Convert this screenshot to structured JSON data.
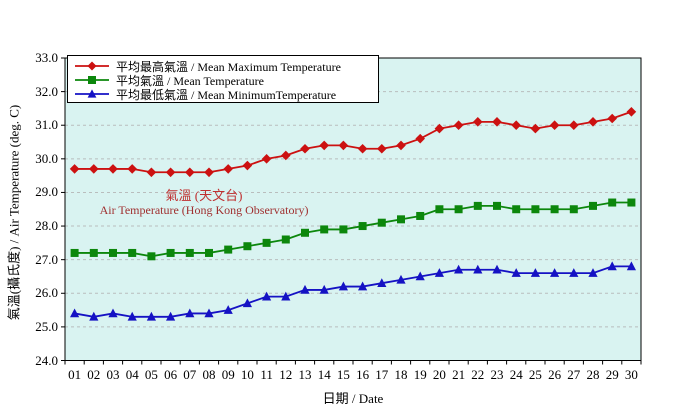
{
  "chart_data": {
    "type": "line",
    "x": [
      "01",
      "02",
      "03",
      "04",
      "05",
      "06",
      "07",
      "08",
      "09",
      "10",
      "11",
      "12",
      "13",
      "14",
      "15",
      "16",
      "17",
      "18",
      "19",
      "20",
      "21",
      "22",
      "23",
      "24",
      "25",
      "26",
      "27",
      "28",
      "29",
      "30"
    ],
    "xlabel": "日期 / Date",
    "ylabel": "氣溫(攝氏度) / Air Temperature (deg. C)",
    "ylim": [
      24.0,
      33.0
    ],
    "yticks": [
      "33.0",
      "32.0",
      "31.0",
      "30.0",
      "29.0",
      "28.0",
      "27.0",
      "26.0",
      "25.0",
      "24.0"
    ],
    "grid": "horizontal-dashed",
    "legend_position": "top-left-inside",
    "colors": {
      "plot_background": "#d9f3f1",
      "gridline": "#b9bdbd",
      "axis": "#000000",
      "mean_max": "#cc1111",
      "mean": "#0c870c",
      "mean_min": "#1512c4",
      "annotation": "#a03030"
    },
    "series": [
      {
        "name": "平均最高氣溫 / Mean Maximum Temperature",
        "marker": "diamond",
        "color": "#cc1111",
        "values": [
          29.7,
          29.7,
          29.7,
          29.7,
          29.6,
          29.6,
          29.6,
          29.6,
          29.7,
          29.8,
          30.0,
          30.1,
          30.3,
          30.4,
          30.4,
          30.3,
          30.3,
          30.4,
          30.6,
          30.9,
          31.0,
          31.1,
          31.1,
          31.0,
          30.9,
          31.0,
          31.0,
          31.1,
          31.2,
          31.4
        ]
      },
      {
        "name": "平均氣溫 / Mean Temperature",
        "marker": "square",
        "color": "#0c870c",
        "values": [
          27.2,
          27.2,
          27.2,
          27.2,
          27.1,
          27.2,
          27.2,
          27.2,
          27.3,
          27.4,
          27.5,
          27.6,
          27.8,
          27.9,
          27.9,
          28.0,
          28.1,
          28.2,
          28.3,
          28.5,
          28.5,
          28.6,
          28.6,
          28.5,
          28.5,
          28.5,
          28.5,
          28.6,
          28.7,
          28.7
        ]
      },
      {
        "name": "平均最低氣溫 / Mean MinimumTemperature",
        "marker": "triangle",
        "color": "#1512c4",
        "values": [
          25.4,
          25.3,
          25.4,
          25.3,
          25.3,
          25.3,
          25.4,
          25.4,
          25.5,
          25.7,
          25.9,
          25.9,
          26.1,
          26.1,
          26.2,
          26.2,
          26.3,
          26.4,
          26.5,
          26.6,
          26.7,
          26.7,
          26.7,
          26.6,
          26.6,
          26.6,
          26.6,
          26.6,
          26.8,
          26.8
        ]
      }
    ],
    "annotation": {
      "line1": "氣溫 (天文台)",
      "line2": "Air Temperature (Hong Kong Observatory)"
    }
  }
}
